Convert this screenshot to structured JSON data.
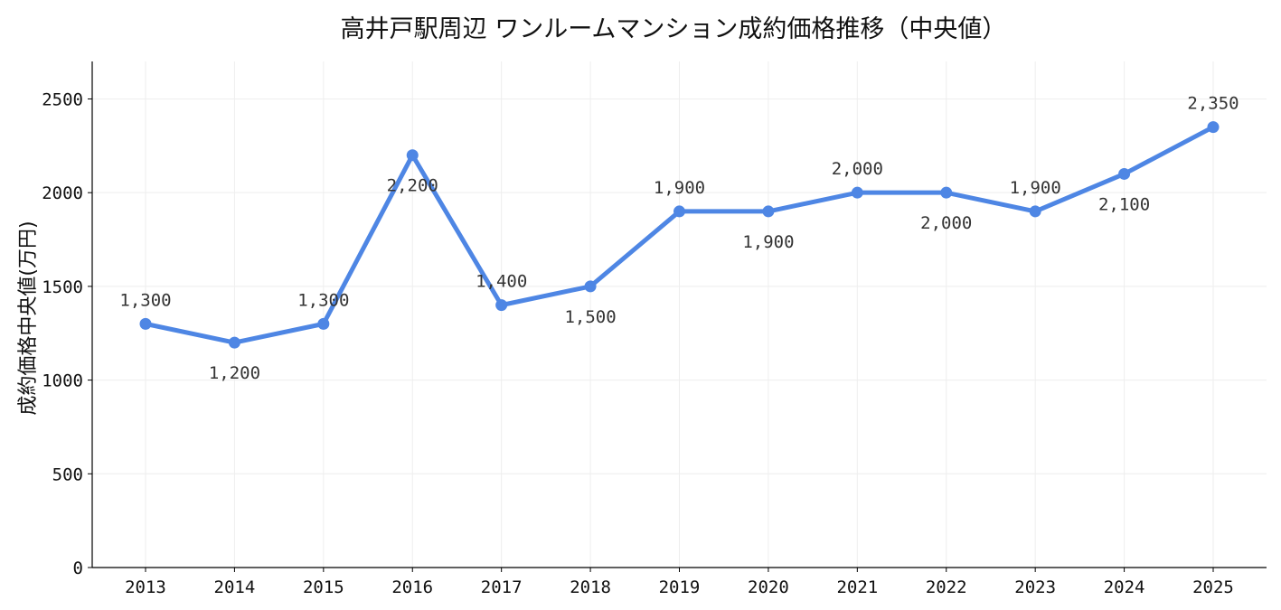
{
  "chart_data": {
    "type": "line",
    "title": "高井戸駅周辺 ワンルームマンション成約価格推移（中央値）",
    "xlabel": "",
    "ylabel": "成約価格中央値(万円)",
    "ylim": [
      0,
      2700
    ],
    "yticks": [
      0,
      500,
      1000,
      1500,
      2000,
      2500
    ],
    "categories": [
      "2013",
      "2014",
      "2015",
      "2016",
      "2017",
      "2018",
      "2019",
      "2020",
      "2021",
      "2022",
      "2023",
      "2024",
      "2025"
    ],
    "values": [
      1300,
      1200,
      1300,
      2200,
      1400,
      1500,
      1900,
      1900,
      2000,
      2000,
      1900,
      2100,
      2350
    ],
    "data_labels": [
      "1,300",
      "1,200",
      "1,300",
      "2,200",
      "1,400",
      "1,500",
      "1,900",
      "1,900",
      "2,000",
      "2,000",
      "1,900",
      "2,100",
      "2,350"
    ],
    "label_position": [
      "above",
      "below",
      "above",
      "below",
      "above",
      "below",
      "above",
      "below",
      "above",
      "below",
      "above",
      "below",
      "above"
    ],
    "grid": true,
    "legend": "none",
    "color": "#4e86e4"
  }
}
